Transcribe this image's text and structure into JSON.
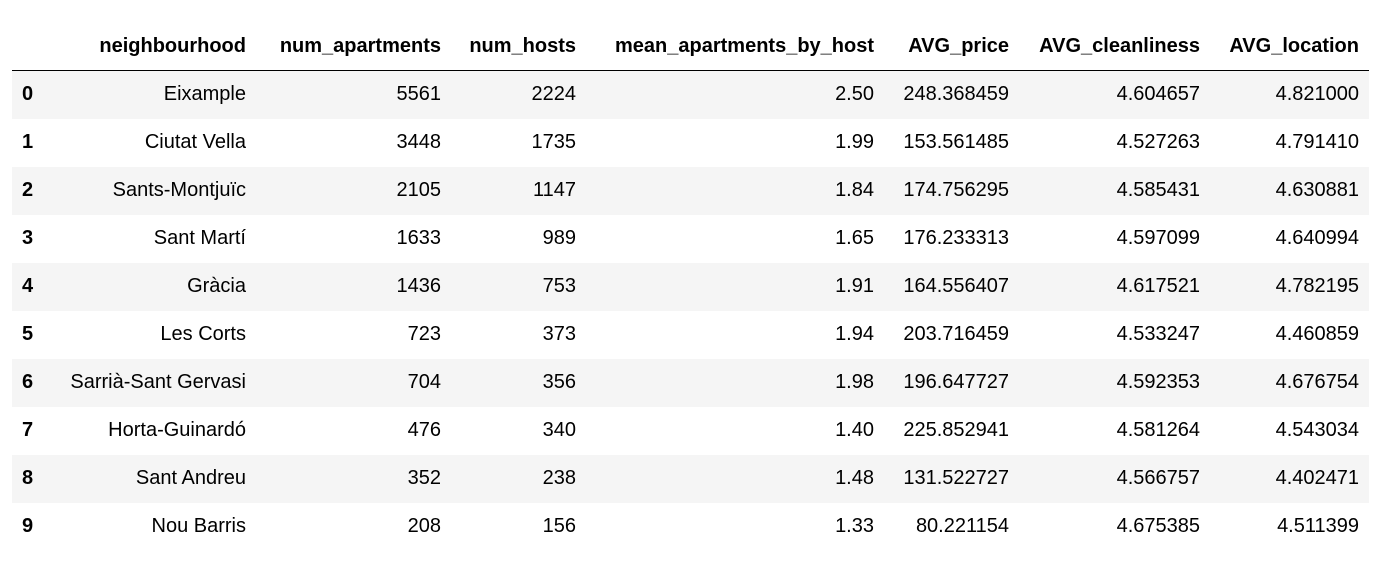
{
  "table": {
    "index_header": "",
    "columns": [
      "neighbourhood",
      "num_apartments",
      "num_hosts",
      "mean_apartments_by_host",
      "AVG_price",
      "AVG_cleanliness",
      "AVG_location"
    ],
    "rows": [
      {
        "index": "0",
        "cells": [
          "Eixample",
          "5561",
          "2224",
          "2.50",
          "248.368459",
          "4.604657",
          "4.821000"
        ]
      },
      {
        "index": "1",
        "cells": [
          "Ciutat Vella",
          "3448",
          "1735",
          "1.99",
          "153.561485",
          "4.527263",
          "4.791410"
        ]
      },
      {
        "index": "2",
        "cells": [
          "Sants-Montjuïc",
          "2105",
          "1147",
          "1.84",
          "174.756295",
          "4.585431",
          "4.630881"
        ]
      },
      {
        "index": "3",
        "cells": [
          "Sant Martí",
          "1633",
          "989",
          "1.65",
          "176.233313",
          "4.597099",
          "4.640994"
        ]
      },
      {
        "index": "4",
        "cells": [
          "Gràcia",
          "1436",
          "753",
          "1.91",
          "164.556407",
          "4.617521",
          "4.782195"
        ]
      },
      {
        "index": "5",
        "cells": [
          "Les Corts",
          "723",
          "373",
          "1.94",
          "203.716459",
          "4.533247",
          "4.460859"
        ]
      },
      {
        "index": "6",
        "cells": [
          "Sarrià-Sant Gervasi",
          "704",
          "356",
          "1.98",
          "196.647727",
          "4.592353",
          "4.676754"
        ]
      },
      {
        "index": "7",
        "cells": [
          "Horta-Guinardó",
          "476",
          "340",
          "1.40",
          "225.852941",
          "4.581264",
          "4.543034"
        ]
      },
      {
        "index": "8",
        "cells": [
          "Sant Andreu",
          "352",
          "238",
          "1.48",
          "131.522727",
          "4.566757",
          "4.402471"
        ]
      },
      {
        "index": "9",
        "cells": [
          "Nou Barris",
          "208",
          "156",
          "1.33",
          "80.221154",
          "4.675385",
          "4.511399"
        ]
      }
    ],
    "colors": {
      "stripe": "#f5f5f5",
      "background": "#ffffff",
      "text": "#000000",
      "header_rule": "#000000"
    }
  }
}
